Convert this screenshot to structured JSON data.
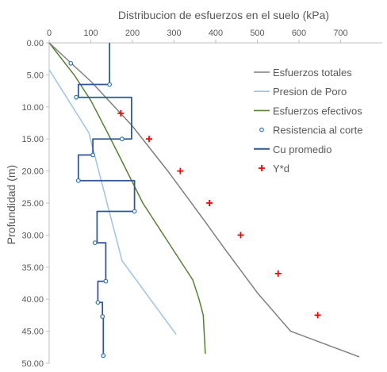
{
  "chart_data": {
    "type": "line",
    "title": "Distribucion de esfuerzos en el suelo (kPa)",
    "xlabel": "",
    "ylabel": "Profundidad (m)",
    "xlim": [
      0,
      800
    ],
    "ylim": [
      0,
      50
    ],
    "y_reversed": true,
    "x_axis_position": "top",
    "x_ticks": [
      "0",
      "100",
      "200",
      "300",
      "400",
      "500",
      "600",
      "700"
    ],
    "x_tick_values": [
      0,
      100,
      200,
      300,
      400,
      500,
      600,
      700
    ],
    "y_ticks": [
      "0.00",
      "5.00",
      "10.00",
      "15.00",
      "20.00",
      "25.00",
      "30.00",
      "35.00",
      "40.00",
      "45.00",
      "50.00"
    ],
    "y_tick_values": [
      0,
      5,
      10,
      15,
      20,
      25,
      30,
      35,
      40,
      45,
      50
    ],
    "grid": false,
    "legend_position": "right",
    "series": [
      {
        "name": "Esfuerzos totales",
        "style": "line",
        "color": "#7f7f7f",
        "points": [
          [
            0,
            0
          ],
          [
            100,
            6
          ],
          [
            200,
            13
          ],
          [
            285,
            20
          ],
          [
            370,
            27.5
          ],
          [
            420,
            32
          ],
          [
            500,
            39
          ],
          [
            580,
            45
          ],
          [
            745,
            49
          ]
        ]
      },
      {
        "name": "Presion de Poro",
        "style": "line",
        "color": "#9dc3e6",
        "points": [
          [
            0,
            4.2
          ],
          [
            95,
            14
          ],
          [
            175,
            34
          ],
          [
            305,
            45.5
          ]
        ]
      },
      {
        "name": "Esfuerzos efectivos",
        "style": "line",
        "color": "#548235",
        "points": [
          [
            0,
            0
          ],
          [
            60,
            5
          ],
          [
            100,
            9
          ],
          [
            140,
            14
          ],
          [
            175,
            18.5
          ],
          [
            225,
            25
          ],
          [
            285,
            31
          ],
          [
            345,
            37
          ],
          [
            360,
            40
          ],
          [
            370,
            42.5
          ],
          [
            375,
            48.5
          ]
        ]
      },
      {
        "name": "Resistencia al corte",
        "style": "marker",
        "color": "#2e75b6",
        "points": [
          [
            52,
            3.2
          ],
          [
            65,
            8.5
          ],
          [
            145,
            6.5
          ],
          [
            175,
            15
          ],
          [
            105,
            17.5
          ],
          [
            70,
            21.5
          ],
          [
            205,
            26.3
          ],
          [
            110,
            31.2
          ],
          [
            136,
            37.2
          ],
          [
            117,
            40.5
          ],
          [
            128,
            42.7
          ],
          [
            130,
            48.8
          ]
        ]
      },
      {
        "name": "Cu promedio",
        "style": "step",
        "color": "#2f5597",
        "points": [
          [
            145,
            0
          ],
          [
            145,
            6.5
          ],
          [
            70,
            6.5
          ],
          [
            70,
            8.5
          ],
          [
            198,
            8.5
          ],
          [
            198,
            15
          ],
          [
            105,
            15
          ],
          [
            105,
            17.5
          ],
          [
            70,
            17.5
          ],
          [
            70,
            21.5
          ],
          [
            205,
            21.5
          ],
          [
            205,
            26.3
          ],
          [
            115,
            26.3
          ],
          [
            115,
            31.2
          ],
          [
            136,
            31.2
          ],
          [
            136,
            37.2
          ],
          [
            117,
            37.2
          ],
          [
            117,
            40.5
          ],
          [
            128,
            40.5
          ],
          [
            128,
            42.7
          ],
          [
            130,
            42.7
          ],
          [
            130,
            49
          ]
        ]
      },
      {
        "name": "Y*d",
        "style": "plus",
        "color": "#ff0000",
        "points": [
          [
            172,
            11
          ],
          [
            240,
            15
          ],
          [
            315,
            20
          ],
          [
            385,
            25
          ],
          [
            460,
            30
          ],
          [
            550,
            36
          ],
          [
            645,
            42.5
          ]
        ]
      }
    ]
  }
}
